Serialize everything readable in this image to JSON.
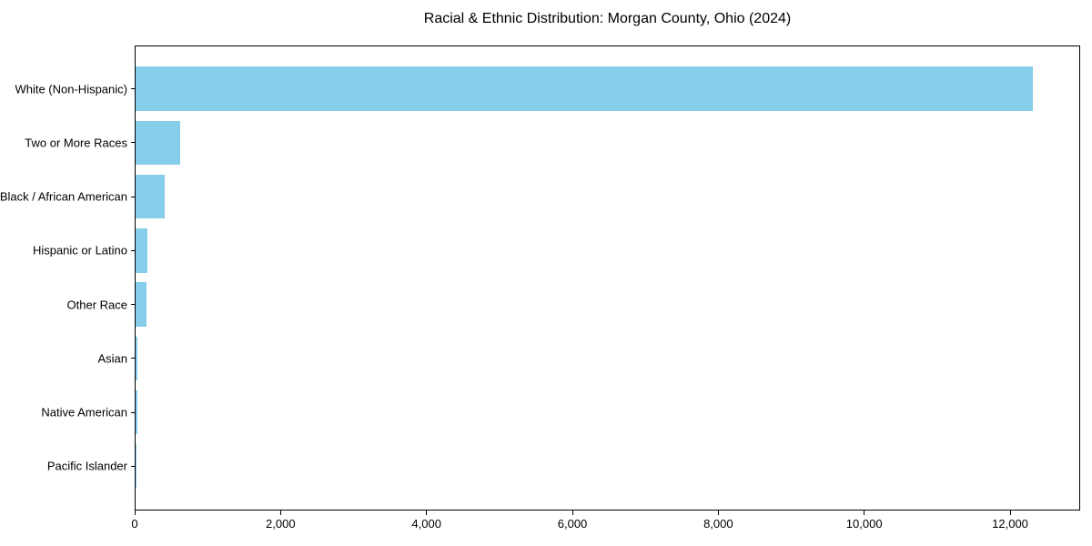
{
  "title": "Racial & Ethnic Distribution: Morgan County, Ohio (2024)",
  "colors": {
    "bar": "#87CEEB",
    "axis": "#000000",
    "text": "#000000",
    "background": "#FFFFFF"
  },
  "chart_data": {
    "type": "bar",
    "orientation": "horizontal",
    "title": "Racial & Ethnic Distribution: Morgan County, Ohio (2024)",
    "categories": [
      "White (Non-Hispanic)",
      "Two or More Races",
      "Black / African American",
      "Hispanic or Latino",
      "Other Race",
      "Asian",
      "Native American",
      "Pacific Islander"
    ],
    "values": [
      12320,
      615,
      400,
      165,
      150,
      25,
      20,
      5
    ],
    "xlabel": "",
    "ylabel": "",
    "xlim": [
      0,
      12960
    ],
    "xticks": [
      0,
      2000,
      4000,
      6000,
      8000,
      10000,
      12000
    ],
    "xtick_labels": [
      "0",
      "2,000",
      "4,000",
      "6,000",
      "8,000",
      "10,000",
      "12,000"
    ],
    "grid": false,
    "legend": null,
    "bar_color": "#87CEEB"
  }
}
